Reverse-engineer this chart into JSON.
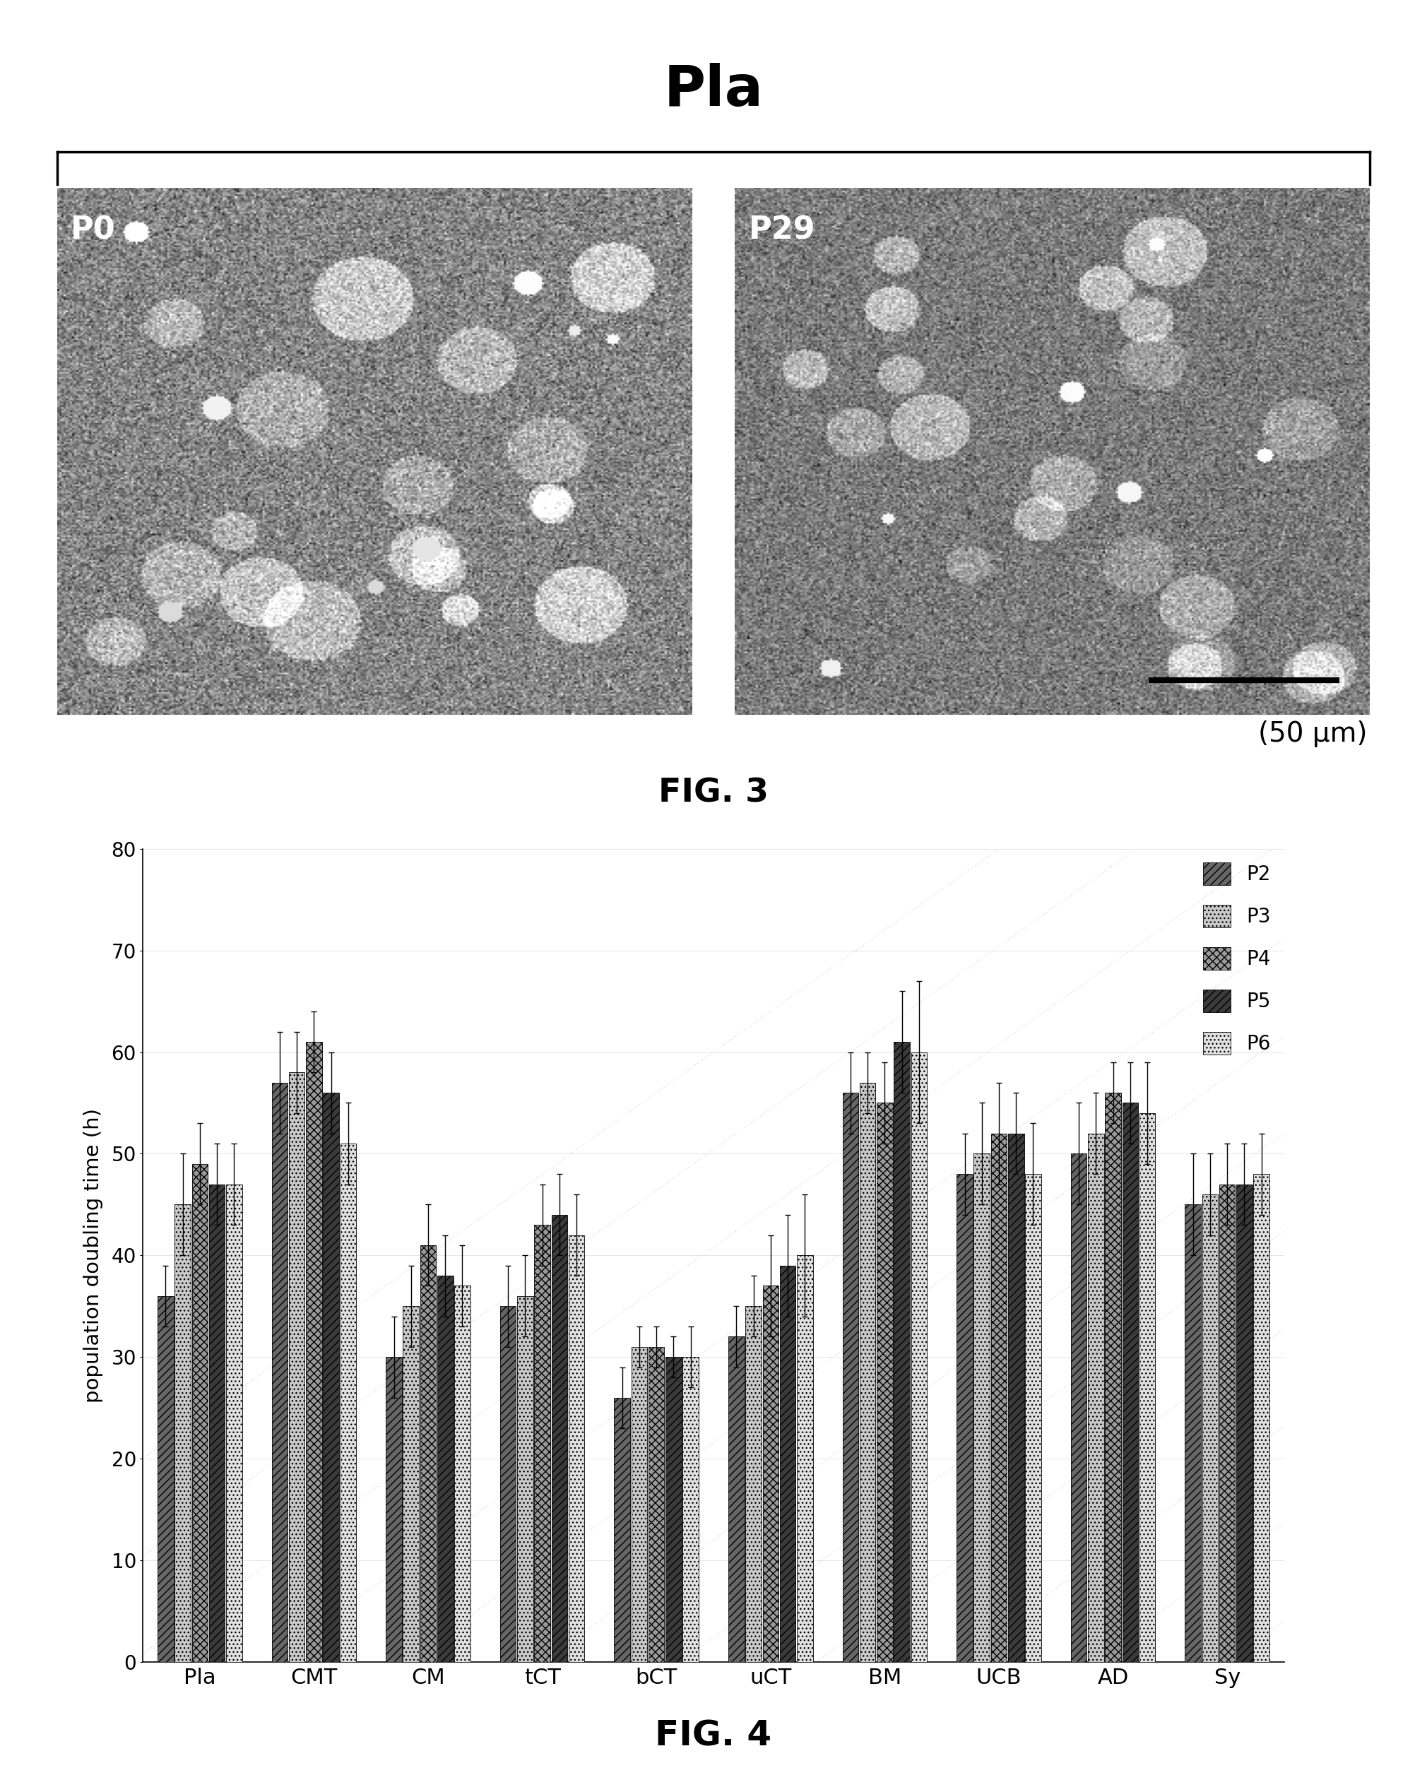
{
  "fig3_title": "Pla",
  "fig3_label": "FIG. 3",
  "fig4_label": "FIG. 4",
  "scale_bar_label": "(50 μm)",
  "p0_label": "P0",
  "p29_label": "P29",
  "categories": [
    "Pla",
    "CMT",
    "CM",
    "tCT",
    "bCT",
    "uCT",
    "BM",
    "UCB",
    "AD",
    "Sy"
  ],
  "series_labels": [
    "P2",
    "P3",
    "P4",
    "P5",
    "P6"
  ],
  "bar_values": [
    [
      36,
      45,
      49,
      47,
      47
    ],
    [
      57,
      58,
      61,
      56,
      51
    ],
    [
      30,
      35,
      41,
      38,
      37
    ],
    [
      35,
      36,
      43,
      44,
      42
    ],
    [
      26,
      31,
      31,
      30,
      30
    ],
    [
      32,
      35,
      37,
      39,
      40
    ],
    [
      56,
      57,
      55,
      61,
      60
    ],
    [
      48,
      50,
      52,
      52,
      48
    ],
    [
      50,
      52,
      56,
      55,
      54
    ],
    [
      45,
      46,
      47,
      47,
      48
    ]
  ],
  "bar_errors": [
    [
      3,
      5,
      4,
      4,
      4
    ],
    [
      5,
      4,
      3,
      4,
      4
    ],
    [
      4,
      4,
      4,
      4,
      4
    ],
    [
      4,
      4,
      4,
      4,
      4
    ],
    [
      3,
      2,
      2,
      2,
      3
    ],
    [
      3,
      3,
      5,
      5,
      6
    ],
    [
      4,
      3,
      4,
      5,
      7
    ],
    [
      4,
      5,
      5,
      4,
      5
    ],
    [
      5,
      4,
      3,
      4,
      5
    ],
    [
      5,
      4,
      4,
      4,
      4
    ]
  ],
  "ylabel": "population doubling time (h)",
  "ylim": [
    0,
    80
  ],
  "yticks": [
    0,
    10,
    20,
    30,
    40,
    50,
    60,
    70,
    80
  ],
  "background_color": "#ffffff"
}
